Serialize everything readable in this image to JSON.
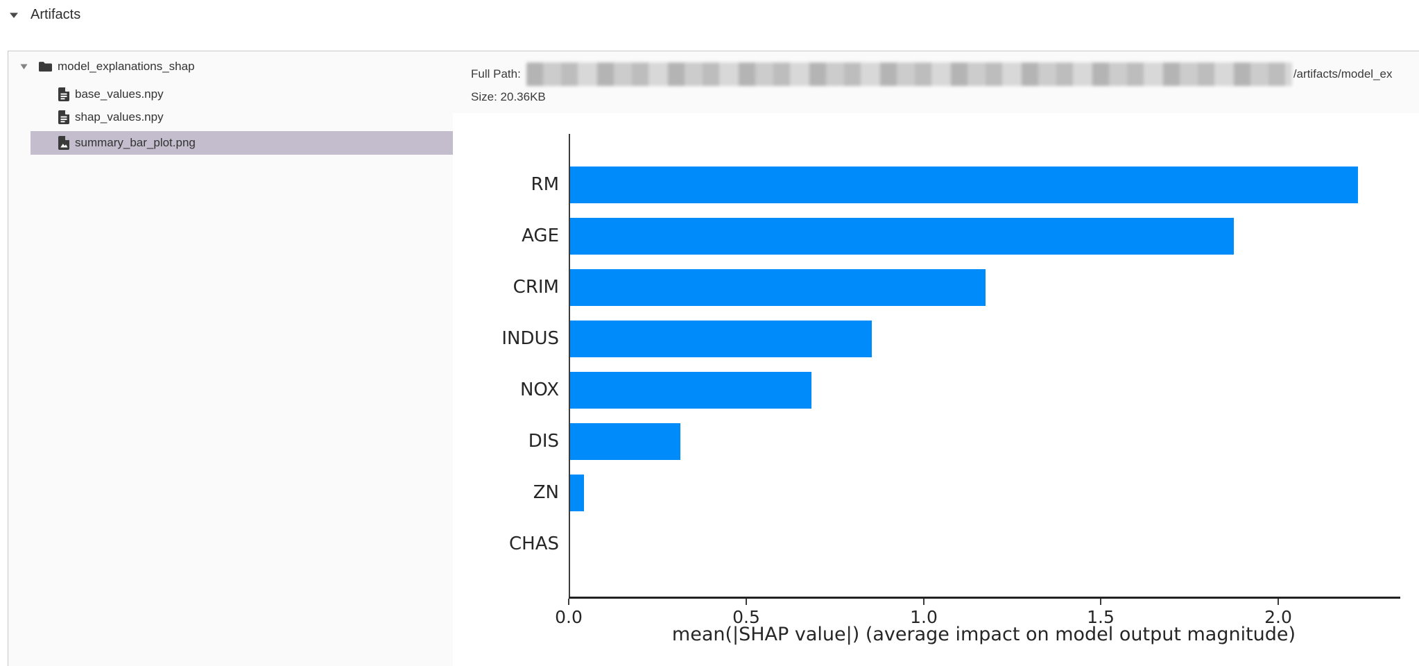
{
  "header": {
    "title": "Artifacts"
  },
  "tree": {
    "root_folder": {
      "label": "model_explanations_shap",
      "expanded": true
    },
    "files": [
      {
        "label": "base_values.npy",
        "type": "file-text",
        "selected": false
      },
      {
        "label": "shap_values.npy",
        "type": "file-text",
        "selected": false
      },
      {
        "label": "summary_bar_plot.png",
        "type": "file-image",
        "selected": true
      }
    ]
  },
  "info": {
    "full_path_label": "Full Path:",
    "path_redacted": true,
    "path_visible_tail": "/artifacts/model_ex",
    "size_label": "Size:",
    "size_value": "20.36KB"
  },
  "chart_data": {
    "type": "bar",
    "orientation": "horizontal",
    "title": "",
    "categories": [
      "RM",
      "AGE",
      "CRIM",
      "INDUS",
      "NOX",
      "DIS",
      "ZN",
      "CHAS"
    ],
    "values": [
      2.22,
      1.87,
      1.17,
      0.85,
      0.68,
      0.31,
      0.04,
      0.0
    ],
    "xlabel": "mean(|SHAP value|) (average impact on model output magnitude)",
    "ylabel": "",
    "xticks": [
      0,
      0.5,
      1.0,
      1.5,
      2.0
    ],
    "xtick_labels": [
      "0.0",
      "0.5",
      "1.0",
      "1.5",
      "2.0"
    ],
    "xlim": [
      0,
      2.34
    ],
    "grid": false,
    "legend": null,
    "bar_color": "#008bfb"
  },
  "colors": {
    "bar_blue": "#008bfb",
    "selected_row_bg": "#c3bdcd",
    "panel_bg": "#fafafa",
    "panel_border": "#c8c8c8",
    "text_dark": "#333333"
  }
}
